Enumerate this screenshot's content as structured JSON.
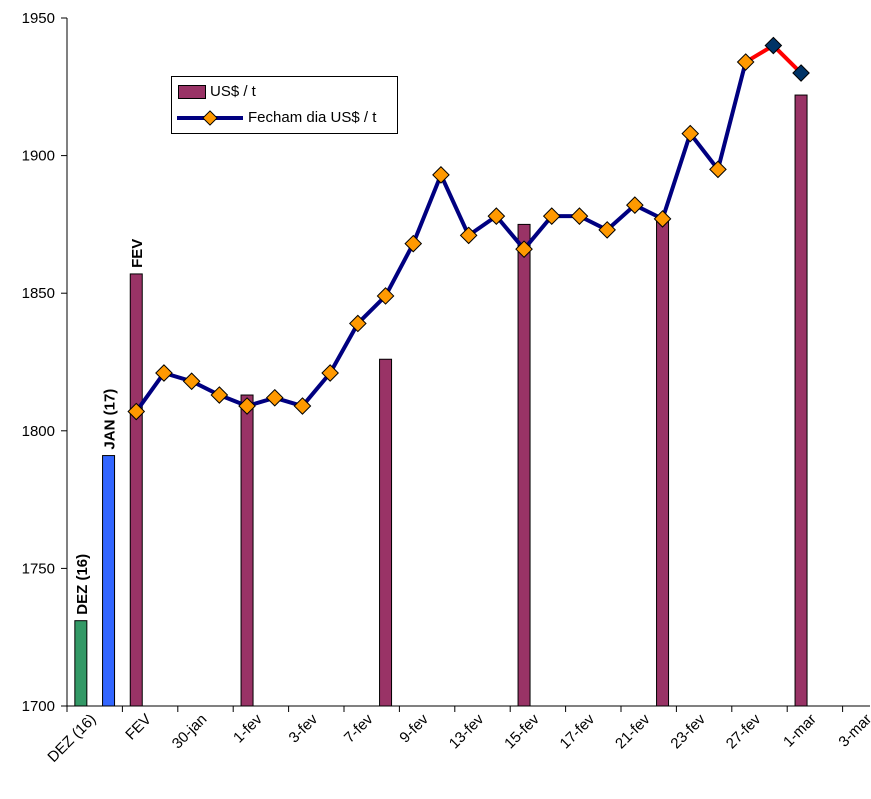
{
  "chart_data": {
    "type": "bar+line",
    "ylim": [
      1700,
      1950
    ],
    "y_ticks": [
      "1700",
      "1750",
      "1800",
      "1850",
      "1900",
      "1950"
    ],
    "x_tick_labels": [
      "DEZ (16)",
      "FEV",
      "30-jan",
      "1-fev",
      "3-fev",
      "7-fev",
      "9-fev",
      "13-fev",
      "15-fev",
      "17-fev",
      "21-fev",
      "23-fev",
      "27-fev",
      "1-mar",
      "3-mar"
    ],
    "legend": {
      "bar_label": "US$ / t",
      "line_label": "Fecham  dia US$  / t"
    },
    "month_bars": [
      {
        "label": "DEZ (16)",
        "value": 1731,
        "color": "#339966"
      },
      {
        "label": "JAN (17)",
        "value": 1791,
        "color": "#3366ff"
      },
      {
        "label": "FEV",
        "value": 1857,
        "color": "#993366"
      }
    ],
    "weekly_bars": [
      {
        "x_index": 6,
        "value": 1813
      },
      {
        "x_index": 11,
        "value": 1826
      },
      {
        "x_index": 16,
        "value": 1875
      },
      {
        "x_index": 21,
        "value": 1877
      },
      {
        "x_index": 26,
        "value": 1922
      }
    ],
    "line_values": [
      1807,
      1821,
      1818,
      1813,
      1809,
      1812,
      1809,
      1821,
      1839,
      1849,
      1868,
      1893,
      1871,
      1878,
      1866,
      1878,
      1878,
      1873,
      1882,
      1877,
      1908,
      1895,
      1934,
      1940,
      1930
    ],
    "line_start_index": 2,
    "highlight_last_points": 2,
    "colors": {
      "bar": "#993366",
      "line": "#000080",
      "marker": "#ff9900",
      "highlight_segment": "#ff0000",
      "highlight_marker": "#003366"
    }
  }
}
